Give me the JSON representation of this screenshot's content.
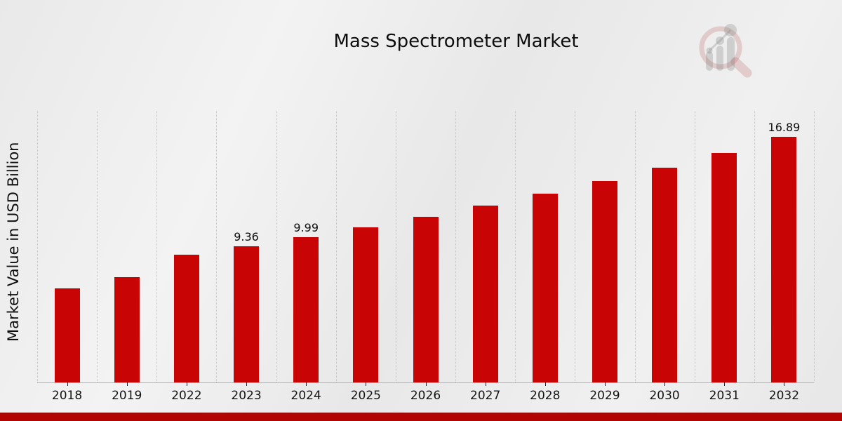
{
  "page": {
    "title": "Mass Spectrometer Market"
  },
  "chart_data": {
    "type": "bar",
    "title": "Mass Spectrometer Market",
    "xlabel": "",
    "ylabel": "Market Value in USD Billion",
    "categories": [
      "2018",
      "2019",
      "2022",
      "2023",
      "2024",
      "2025",
      "2026",
      "2027",
      "2028",
      "2029",
      "2030",
      "2031",
      "2032"
    ],
    "values": [
      6.48,
      7.26,
      8.8,
      9.36,
      9.99,
      10.67,
      11.39,
      12.17,
      12.99,
      13.87,
      14.81,
      15.81,
      16.89
    ],
    "data_labels": [
      "",
      "",
      "",
      "9.36",
      "9.99",
      "",
      "",
      "",
      "",
      "",
      "",
      "",
      "16.89"
    ],
    "ylim": [
      0,
      18.7
    ],
    "grid": "vertical-dotted",
    "legend": "none",
    "bar_color": "#c80404",
    "gridline_color": "#c3c3c3",
    "axis_line_color": "#b5b5b5",
    "label_color": "#0d0d0d"
  },
  "branding": {
    "logo_icon": "magnifier-bar-chart-watermark",
    "ring_color": "rgba(192,118,118,0.30)",
    "bars_color": "rgba(125,125,125,0.28)"
  },
  "footer": {
    "accent_bar_color": "#b30404"
  }
}
